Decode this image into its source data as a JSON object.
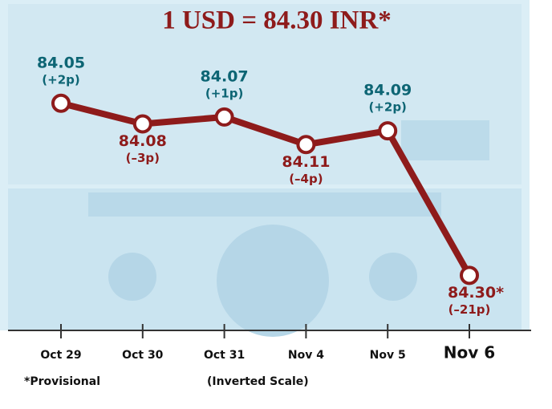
{
  "chart_data": {
    "type": "line",
    "title": "1 USD = 84.30 INR*",
    "categories": [
      "Oct 29",
      "Oct 30",
      "Oct 31",
      "Nov 4",
      "Nov 5",
      "Nov 6"
    ],
    "values": [
      84.05,
      84.08,
      84.07,
      84.11,
      84.09,
      84.3
    ],
    "value_labels": [
      "84.05",
      "84.08",
      "84.07",
      "84.11",
      "84.09",
      "84.30*"
    ],
    "changes": [
      "(+2p)",
      "(–3p)",
      "(+1p)",
      "(–4p)",
      "(+2p)",
      "(–21p)"
    ],
    "color": "#8e1b1b",
    "up_color": "#0d6574",
    "down_color": "#8e1b1b",
    "ylim": [
      83.9,
      84.38
    ],
    "inverted": true,
    "footnote": "*Provisional",
    "note": "(Inverted Scale)"
  }
}
